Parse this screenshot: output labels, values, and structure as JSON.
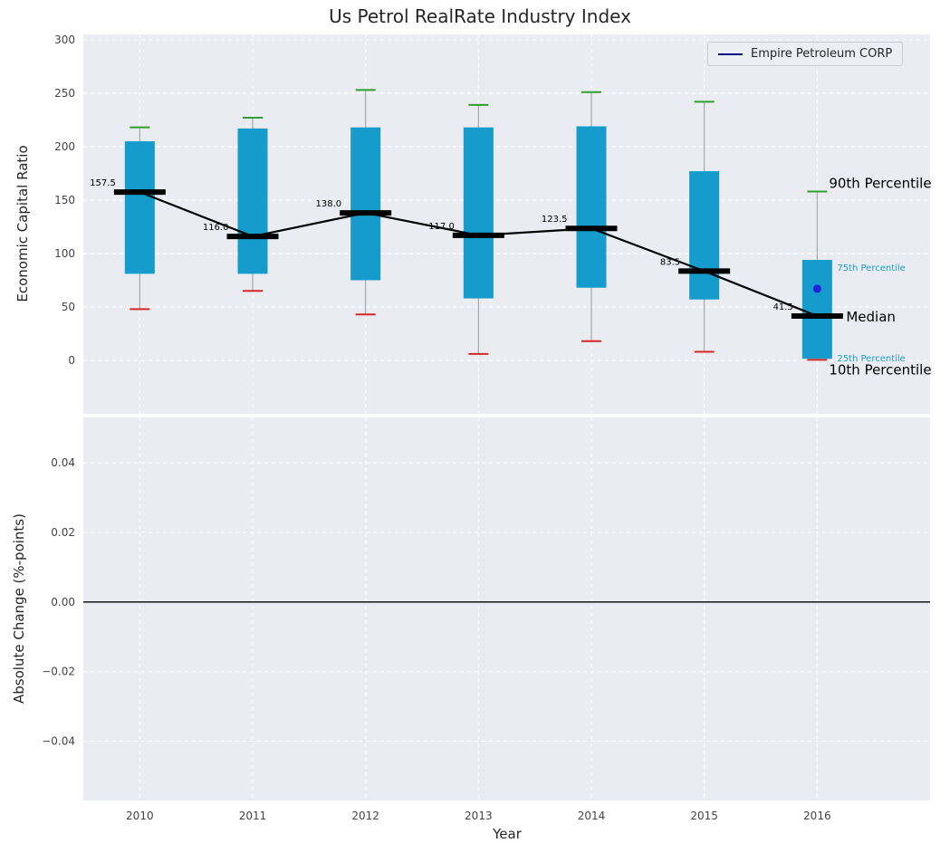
{
  "chart_data": [
    {
      "type": "boxplot",
      "title": "Us Petrol RealRate Industry Index",
      "xlabel": "Year",
      "ylabel": "Economic Capital Ratio",
      "categories": [
        2010,
        2011,
        2012,
        2013,
        2014,
        2015,
        2016
      ],
      "category_labels": [
        "2010",
        "2011",
        "2012",
        "2013",
        "2014",
        "2015",
        "2016"
      ],
      "xlim": [
        2009.5,
        2017.0
      ],
      "ylim": [
        -50,
        305
      ],
      "yticks": [
        0,
        50,
        100,
        150,
        200,
        250,
        300
      ],
      "ytick_labels": [
        "0",
        "50",
        "100",
        "150",
        "200",
        "250",
        "300"
      ],
      "grid": true,
      "legend_position": "upper right",
      "series": {
        "p10": [
          48,
          65,
          43,
          6,
          18,
          8,
          0.5
        ],
        "p25": [
          81,
          81,
          75,
          58,
          68,
          57,
          1.5
        ],
        "median": [
          157.5,
          116.0,
          138.0,
          117.0,
          123.5,
          83.5,
          41.5
        ],
        "p75": [
          205,
          217,
          218,
          218,
          219,
          177,
          94
        ],
        "p90": [
          218,
          227,
          253,
          239,
          251,
          242,
          158
        ]
      },
      "median_labels": [
        "157.5",
        "116.0",
        "138.0",
        "117.0",
        "123.5",
        "83.5",
        "41.5"
      ],
      "company_point": {
        "label": "Empire Petroleum CORP",
        "x": 2016,
        "y": 67
      },
      "legend": {
        "label": "Empire Petroleum CORP"
      },
      "annotations": [
        {
          "anchor": "p90",
          "text": "90th Percentile",
          "size": 15,
          "color": "#000000"
        },
        {
          "anchor": "p75",
          "text": "75th Percentile",
          "size": 10,
          "color": "#189fcb"
        },
        {
          "anchor": "median",
          "text": "Median",
          "size": 15,
          "color": "#000000"
        },
        {
          "anchor": "p25",
          "text": "25th Percentile",
          "size": 10,
          "color": "#189fcb"
        },
        {
          "anchor": "p10",
          "text": "10th Percentile",
          "size": 15,
          "color": "#000000"
        }
      ],
      "colors": {
        "box": "#159ccd",
        "p90_cap": "#2ca02c",
        "p10_cap": "#d62728",
        "whisker": "#9a9a9a",
        "median": "#000000",
        "company_point": "#2222dd",
        "legend_line": "#00008b",
        "plot_bg": "#eaecf1",
        "grid": "#ffffff",
        "tick": "#444444"
      }
    },
    {
      "type": "line",
      "ylabel": "Absolute Change (%-points)",
      "yticks": [
        0.04,
        0.02,
        0,
        -0.02,
        -0.04
      ],
      "ytick_labels": [
        "0.04",
        "0.02",
        "0.00",
        "−0.02",
        "−0.04"
      ],
      "ylim": [
        -0.057,
        0.053
      ],
      "zero_line": 0,
      "values": []
    }
  ]
}
